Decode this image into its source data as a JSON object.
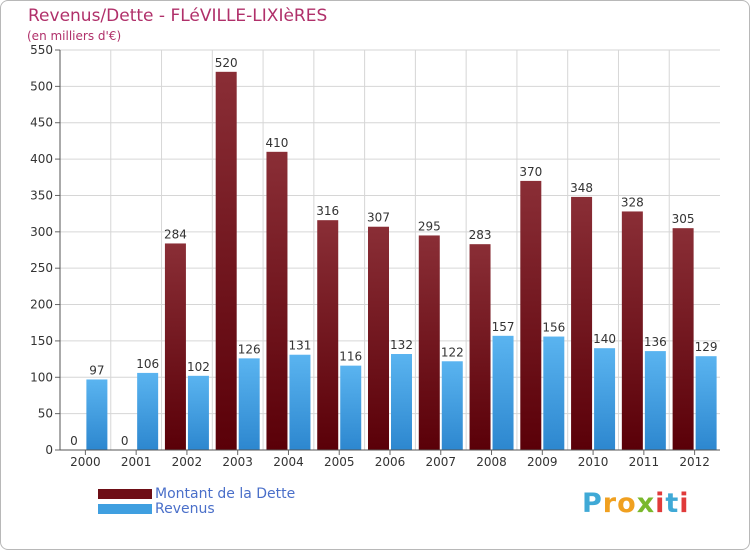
{
  "header": {
    "title": "Revenus/Dette - FLéVILLE-LIXIèRES",
    "subtitle": "(en milliers d'€)"
  },
  "logo": {
    "letters": [
      "P",
      "r",
      "o",
      "x",
      "i",
      "t",
      "i"
    ],
    "colors": [
      "#3fa9d6",
      "#f0a020",
      "#f0a020",
      "#7ab82c",
      "#e03a3a",
      "#3fa9d6",
      "#e03a3a"
    ]
  },
  "legend": [
    {
      "label": "Montant de la Dette",
      "color": "#6e0e16"
    },
    {
      "label": "Revenus",
      "color": "#3f9fe0"
    }
  ],
  "chart_data": {
    "type": "bar",
    "title": "Revenus/Dette - FLéVILLE-LIXIèRES",
    "subtitle": "(en milliers d'€)",
    "xlabel": "",
    "ylabel": "",
    "ylim": [
      0,
      550
    ],
    "yticks": [
      0,
      50,
      100,
      150,
      200,
      250,
      300,
      350,
      400,
      450,
      500,
      550
    ],
    "grid": true,
    "legend_position": "bottom-left",
    "categories": [
      "2000",
      "2001",
      "2002",
      "2003",
      "2004",
      "2005",
      "2006",
      "2007",
      "2008",
      "2009",
      "2010",
      "2011",
      "2012"
    ],
    "series": [
      {
        "name": "Montant de la Dette",
        "color": "#6e0e16",
        "values": [
          0,
          0,
          284,
          520,
          410,
          316,
          307,
          295,
          283,
          370,
          348,
          328,
          305
        ]
      },
      {
        "name": "Revenus",
        "color": "#3f9fe0",
        "values": [
          97,
          106,
          102,
          126,
          131,
          116,
          132,
          122,
          157,
          156,
          140,
          136,
          129
        ]
      }
    ]
  }
}
